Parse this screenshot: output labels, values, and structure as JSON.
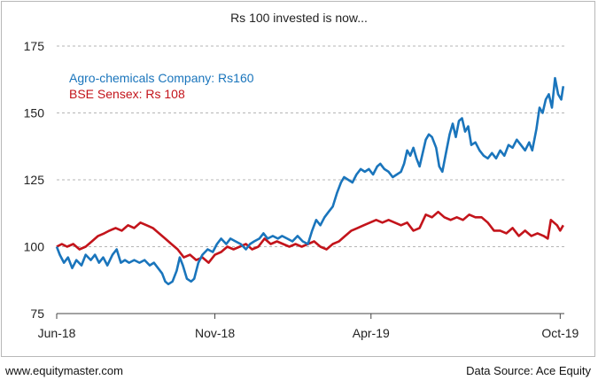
{
  "chart_data": {
    "type": "line",
    "title": "Rs 100 invested is now...",
    "xlabel": "",
    "ylabel": "",
    "ylim": [
      75,
      175
    ],
    "yticks": [
      75,
      100,
      125,
      150,
      175
    ],
    "xtick_labels": [
      "Jun-18",
      "Nov-18",
      "Apr-19",
      "Oct-19"
    ],
    "xlim": [
      "2018-06-01",
      "2019-10-05"
    ],
    "xtick_dates": [
      "2018-06-01",
      "2018-11-01",
      "2019-04-01",
      "2019-10-01"
    ],
    "grid": "horizontal",
    "legend_position": "top-left",
    "series": [
      {
        "name": "Agro-chemicals Company: Rs160",
        "color": "#1a75bc",
        "points": [
          [
            "2018-06-01",
            100
          ],
          [
            "2018-06-04",
            97
          ],
          [
            "2018-06-08",
            94
          ],
          [
            "2018-06-12",
            96
          ],
          [
            "2018-06-16",
            92
          ],
          [
            "2018-06-20",
            95
          ],
          [
            "2018-06-25",
            93
          ],
          [
            "2018-06-29",
            97
          ],
          [
            "2018-07-04",
            95
          ],
          [
            "2018-07-08",
            97
          ],
          [
            "2018-07-12",
            94
          ],
          [
            "2018-07-16",
            96
          ],
          [
            "2018-07-20",
            93
          ],
          [
            "2018-07-25",
            97
          ],
          [
            "2018-07-29",
            99
          ],
          [
            "2018-08-02",
            94
          ],
          [
            "2018-08-06",
            95
          ],
          [
            "2018-08-10",
            94
          ],
          [
            "2018-08-15",
            95
          ],
          [
            "2018-08-20",
            94
          ],
          [
            "2018-08-25",
            95
          ],
          [
            "2018-08-30",
            93
          ],
          [
            "2018-09-03",
            94
          ],
          [
            "2018-09-07",
            92
          ],
          [
            "2018-09-11",
            90
          ],
          [
            "2018-09-14",
            87
          ],
          [
            "2018-09-17",
            86
          ],
          [
            "2018-09-21",
            87
          ],
          [
            "2018-09-25",
            91
          ],
          [
            "2018-09-28",
            96
          ],
          [
            "2018-10-01",
            93
          ],
          [
            "2018-10-05",
            88
          ],
          [
            "2018-10-09",
            87
          ],
          [
            "2018-10-12",
            88
          ],
          [
            "2018-10-16",
            94
          ],
          [
            "2018-10-20",
            97
          ],
          [
            "2018-10-25",
            99
          ],
          [
            "2018-10-30",
            98
          ],
          [
            "2018-11-03",
            101
          ],
          [
            "2018-11-07",
            103
          ],
          [
            "2018-11-12",
            101
          ],
          [
            "2018-11-16",
            103
          ],
          [
            "2018-11-21",
            102
          ],
          [
            "2018-11-26",
            101
          ],
          [
            "2018-12-01",
            99
          ],
          [
            "2018-12-05",
            101
          ],
          [
            "2018-12-09",
            102
          ],
          [
            "2018-12-14",
            103
          ],
          [
            "2018-12-18",
            105
          ],
          [
            "2018-12-22",
            103
          ],
          [
            "2018-12-27",
            104
          ],
          [
            "2019-01-01",
            103
          ],
          [
            "2019-01-05",
            104
          ],
          [
            "2019-01-10",
            103
          ],
          [
            "2019-01-15",
            102
          ],
          [
            "2019-01-20",
            104
          ],
          [
            "2019-01-25",
            102
          ],
          [
            "2019-01-30",
            101
          ],
          [
            "2019-02-03",
            106
          ],
          [
            "2019-02-07",
            110
          ],
          [
            "2019-02-11",
            108
          ],
          [
            "2019-02-15",
            111
          ],
          [
            "2019-02-19",
            113
          ],
          [
            "2019-02-23",
            115
          ],
          [
            "2019-02-27",
            120
          ],
          [
            "2019-03-03",
            124
          ],
          [
            "2019-03-06",
            126
          ],
          [
            "2019-03-10",
            125
          ],
          [
            "2019-03-14",
            124
          ],
          [
            "2019-03-18",
            127
          ],
          [
            "2019-03-22",
            129
          ],
          [
            "2019-03-26",
            128
          ],
          [
            "2019-03-30",
            129
          ],
          [
            "2019-04-03",
            127
          ],
          [
            "2019-04-07",
            130
          ],
          [
            "2019-04-10",
            131
          ],
          [
            "2019-04-14",
            129
          ],
          [
            "2019-04-18",
            128
          ],
          [
            "2019-04-22",
            126
          ],
          [
            "2019-04-26",
            127
          ],
          [
            "2019-04-30",
            128
          ],
          [
            "2019-05-03",
            131
          ],
          [
            "2019-05-06",
            136
          ],
          [
            "2019-05-09",
            134
          ],
          [
            "2019-05-12",
            137
          ],
          [
            "2019-05-15",
            133
          ],
          [
            "2019-05-18",
            130
          ],
          [
            "2019-05-21",
            135
          ],
          [
            "2019-05-24",
            140
          ],
          [
            "2019-05-27",
            142
          ],
          [
            "2019-05-30",
            141
          ],
          [
            "2019-06-03",
            137
          ],
          [
            "2019-06-06",
            130
          ],
          [
            "2019-06-09",
            128
          ],
          [
            "2019-06-12",
            134
          ],
          [
            "2019-06-16",
            142
          ],
          [
            "2019-06-19",
            146
          ],
          [
            "2019-06-22",
            141
          ],
          [
            "2019-06-25",
            147
          ],
          [
            "2019-06-28",
            148
          ],
          [
            "2019-07-01",
            143
          ],
          [
            "2019-07-04",
            145
          ],
          [
            "2019-07-07",
            138
          ],
          [
            "2019-07-11",
            139
          ],
          [
            "2019-07-15",
            136
          ],
          [
            "2019-07-19",
            134
          ],
          [
            "2019-07-23",
            133
          ],
          [
            "2019-07-27",
            135
          ],
          [
            "2019-07-31",
            133
          ],
          [
            "2019-08-04",
            136
          ],
          [
            "2019-08-08",
            134
          ],
          [
            "2019-08-12",
            138
          ],
          [
            "2019-08-16",
            137
          ],
          [
            "2019-08-20",
            140
          ],
          [
            "2019-08-24",
            138
          ],
          [
            "2019-08-28",
            136
          ],
          [
            "2019-09-01",
            139
          ],
          [
            "2019-09-04",
            136
          ],
          [
            "2019-09-08",
            144
          ],
          [
            "2019-09-11",
            152
          ],
          [
            "2019-09-14",
            150
          ],
          [
            "2019-09-17",
            155
          ],
          [
            "2019-09-20",
            157
          ],
          [
            "2019-09-23",
            152
          ],
          [
            "2019-09-26",
            163
          ],
          [
            "2019-09-29",
            157
          ],
          [
            "2019-10-02",
            155
          ],
          [
            "2019-10-04",
            160
          ]
        ]
      },
      {
        "name": "BSE Sensex: Rs 108",
        "color": "#c3141b",
        "points": [
          [
            "2018-06-01",
            100
          ],
          [
            "2018-06-06",
            101
          ],
          [
            "2018-06-11",
            100
          ],
          [
            "2018-06-17",
            101
          ],
          [
            "2018-06-23",
            99
          ],
          [
            "2018-06-29",
            100
          ],
          [
            "2018-07-05",
            102
          ],
          [
            "2018-07-11",
            104
          ],
          [
            "2018-07-17",
            105
          ],
          [
            "2018-07-22",
            106
          ],
          [
            "2018-07-28",
            107
          ],
          [
            "2018-08-03",
            106
          ],
          [
            "2018-08-09",
            108
          ],
          [
            "2018-08-15",
            107
          ],
          [
            "2018-08-21",
            109
          ],
          [
            "2018-08-27",
            108
          ],
          [
            "2018-09-02",
            107
          ],
          [
            "2018-09-08",
            105
          ],
          [
            "2018-09-14",
            103
          ],
          [
            "2018-09-20",
            101
          ],
          [
            "2018-09-26",
            99
          ],
          [
            "2018-10-02",
            96
          ],
          [
            "2018-10-08",
            97
          ],
          [
            "2018-10-14",
            95
          ],
          [
            "2018-10-20",
            96
          ],
          [
            "2018-10-26",
            94
          ],
          [
            "2018-11-01",
            97
          ],
          [
            "2018-11-07",
            98
          ],
          [
            "2018-11-13",
            100
          ],
          [
            "2018-11-19",
            99
          ],
          [
            "2018-11-25",
            100
          ],
          [
            "2018-12-01",
            101
          ],
          [
            "2018-12-07",
            99
          ],
          [
            "2018-12-13",
            100
          ],
          [
            "2018-12-19",
            103
          ],
          [
            "2018-12-25",
            101
          ],
          [
            "2018-12-31",
            102
          ],
          [
            "2019-01-06",
            101
          ],
          [
            "2019-01-12",
            100
          ],
          [
            "2019-01-18",
            101
          ],
          [
            "2019-01-24",
            100
          ],
          [
            "2019-01-30",
            101
          ],
          [
            "2019-02-05",
            102
          ],
          [
            "2019-02-11",
            100
          ],
          [
            "2019-02-17",
            99
          ],
          [
            "2019-02-23",
            101
          ],
          [
            "2019-03-01",
            102
          ],
          [
            "2019-03-07",
            104
          ],
          [
            "2019-03-13",
            106
          ],
          [
            "2019-03-19",
            107
          ],
          [
            "2019-03-25",
            108
          ],
          [
            "2019-03-31",
            109
          ],
          [
            "2019-04-06",
            110
          ],
          [
            "2019-04-12",
            109
          ],
          [
            "2019-04-18",
            110
          ],
          [
            "2019-04-24",
            109
          ],
          [
            "2019-04-30",
            108
          ],
          [
            "2019-05-06",
            109
          ],
          [
            "2019-05-12",
            106
          ],
          [
            "2019-05-18",
            107
          ],
          [
            "2019-05-24",
            112
          ],
          [
            "2019-05-30",
            111
          ],
          [
            "2019-06-05",
            113
          ],
          [
            "2019-06-11",
            111
          ],
          [
            "2019-06-17",
            110
          ],
          [
            "2019-06-23",
            111
          ],
          [
            "2019-06-29",
            110
          ],
          [
            "2019-07-05",
            112
          ],
          [
            "2019-07-11",
            111
          ],
          [
            "2019-07-17",
            111
          ],
          [
            "2019-07-23",
            109
          ],
          [
            "2019-07-29",
            106
          ],
          [
            "2019-08-04",
            106
          ],
          [
            "2019-08-10",
            105
          ],
          [
            "2019-08-16",
            107
          ],
          [
            "2019-08-22",
            104
          ],
          [
            "2019-08-28",
            106
          ],
          [
            "2019-09-03",
            104
          ],
          [
            "2019-09-09",
            105
          ],
          [
            "2019-09-15",
            104
          ],
          [
            "2019-09-19",
            103
          ],
          [
            "2019-09-22",
            110
          ],
          [
            "2019-09-25",
            109
          ],
          [
            "2019-09-28",
            108
          ],
          [
            "2019-10-01",
            106
          ],
          [
            "2019-10-04",
            108
          ]
        ]
      }
    ]
  },
  "footer": {
    "left": "www.equitymaster.com",
    "right": "Data Source: Ace Equity"
  }
}
